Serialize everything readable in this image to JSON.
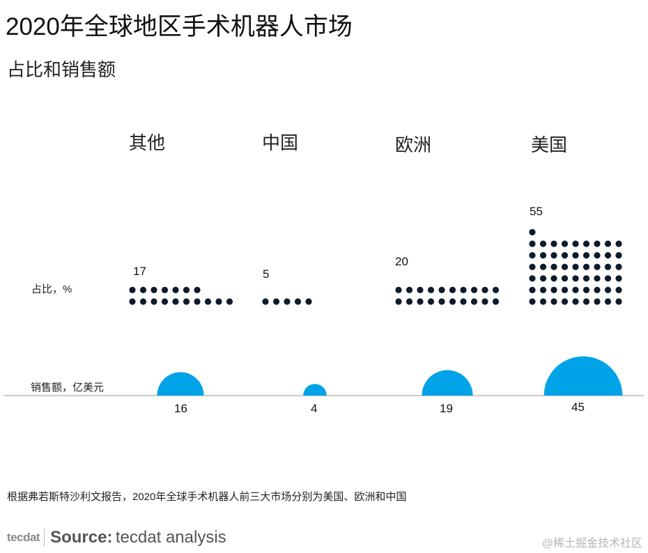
{
  "title": "2020年全球地区手术机器人市场",
  "subtitle": "占比和销售额",
  "colors": {
    "dot": "#0d1b2a",
    "bubble": "#00a3e8",
    "baseline": "#9a9a9a"
  },
  "chart_data": {
    "type": "pictogram",
    "categories": [
      "其他",
      "中国",
      "欧洲",
      "美国"
    ],
    "series": [
      {
        "name": "占比，%",
        "values": [
          17,
          5,
          20,
          55
        ]
      },
      {
        "name": "销售额，亿美元",
        "values": [
          16,
          4,
          19,
          45
        ]
      }
    ]
  },
  "note": "根据弗若斯特沙利文报告，2020年全球手术机器人前三大市场分别为美国、欧洲和中国",
  "source": {
    "logo": "tecdat",
    "key": "Source:",
    "text": "tecdat analysis"
  },
  "watermark": "@稀土掘金技术社区"
}
